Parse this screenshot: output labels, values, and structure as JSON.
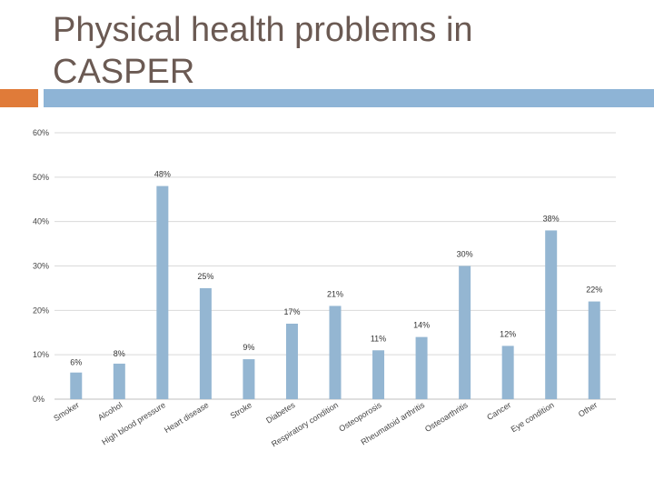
{
  "colors": {
    "title": "#6b5a53",
    "accent_orange": "#e07b39",
    "accent_blue": "#8eb4d6",
    "bar": "#94b6d2",
    "grid": "#d9d9d9",
    "axis": "#bfbfbf"
  },
  "chart_data": {
    "type": "bar",
    "title": "Physical health problems in CASPER",
    "ylim": [
      0,
      60
    ],
    "yticks": [
      "0%",
      "10%",
      "20%",
      "30%",
      "40%",
      "50%",
      "60%"
    ],
    "ytick_values": [
      0,
      10,
      20,
      30,
      40,
      50,
      60
    ],
    "grid": true,
    "categories": [
      "Smoker",
      "Alcohol",
      "High blood pressure",
      "Heart disease",
      "Stroke",
      "Diabetes",
      "Respiratory condition",
      "Osteoporosis",
      "Rheumatoid arthritis",
      "Osteoarthritis",
      "Cancer",
      "Eye condition",
      "Other"
    ],
    "values": [
      6,
      8,
      48,
      25,
      9,
      17,
      21,
      11,
      14,
      30,
      12,
      38,
      22
    ],
    "data_labels": [
      "6%",
      "8%",
      "48%",
      "25%",
      "9%",
      "17%",
      "21%",
      "11%",
      "14%",
      "30%",
      "12%",
      "38%",
      "22%"
    ]
  }
}
